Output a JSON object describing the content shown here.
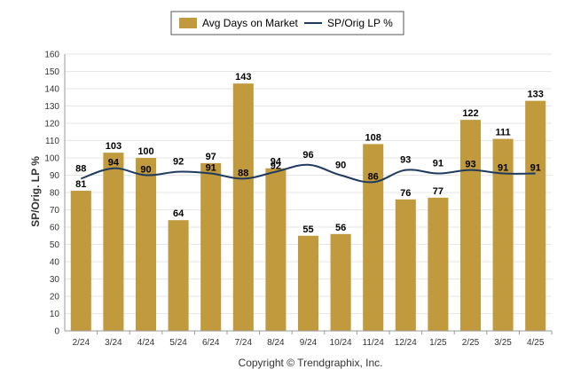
{
  "chart_data": {
    "type": "bar",
    "categories": [
      "2/24",
      "3/24",
      "4/24",
      "5/24",
      "6/24",
      "7/24",
      "8/24",
      "9/24",
      "10/24",
      "11/24",
      "12/24",
      "1/25",
      "2/25",
      "3/25",
      "4/25"
    ],
    "series": [
      {
        "name": "Avg Days on Market",
        "type": "bar",
        "color": "#C19A3E",
        "values": [
          81,
          103,
          100,
          64,
          97,
          143,
          94,
          55,
          56,
          108,
          76,
          77,
          122,
          111,
          133
        ]
      },
      {
        "name": "SP/Orig LP %",
        "type": "line",
        "color": "#1F3A5F",
        "values": [
          88,
          94,
          90,
          92,
          91,
          88,
          92,
          96,
          90,
          86,
          93,
          91,
          93,
          91,
          91
        ]
      }
    ],
    "ylabel": "SP/Orig. LP %",
    "ylim": [
      0,
      160
    ],
    "yticks": [
      0,
      10,
      20,
      30,
      40,
      50,
      60,
      70,
      80,
      90,
      100,
      110,
      120,
      130,
      140,
      150,
      160
    ],
    "grid": true,
    "legend_position": "top-center"
  },
  "footer": {
    "copyright": "Copyright © Trendgraphix, Inc."
  }
}
